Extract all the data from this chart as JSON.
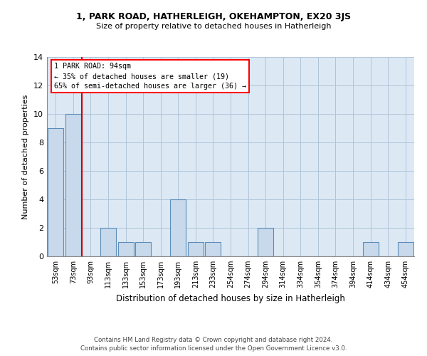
{
  "title": "1, PARK ROAD, HATHERLEIGH, OKEHAMPTON, EX20 3JS",
  "subtitle": "Size of property relative to detached houses in Hatherleigh",
  "xlabel": "Distribution of detached houses by size in Hatherleigh",
  "ylabel": "Number of detached properties",
  "bar_color": "#c9d9ec",
  "bar_edge_color": "#5b8db8",
  "background_color": "#dce9f5",
  "categories": [
    "53sqm",
    "73sqm",
    "93sqm",
    "113sqm",
    "133sqm",
    "153sqm",
    "173sqm",
    "193sqm",
    "213sqm",
    "233sqm",
    "254sqm",
    "274sqm",
    "294sqm",
    "314sqm",
    "334sqm",
    "354sqm",
    "374sqm",
    "394sqm",
    "414sqm",
    "434sqm",
    "454sqm"
  ],
  "values": [
    9,
    10,
    0,
    2,
    1,
    1,
    0,
    4,
    1,
    1,
    0,
    0,
    2,
    0,
    0,
    0,
    0,
    0,
    1,
    0,
    1
  ],
  "property_line_index": 2,
  "annotation_text": "1 PARK ROAD: 94sqm\n← 35% of detached houses are smaller (19)\n65% of semi-detached houses are larger (36) →",
  "annotation_box_color": "white",
  "annotation_box_edge_color": "red",
  "ylim": [
    0,
    14
  ],
  "yticks": [
    0,
    2,
    4,
    6,
    8,
    10,
    12,
    14
  ],
  "footer_line1": "Contains HM Land Registry data © Crown copyright and database right 2024.",
  "footer_line2": "Contains public sector information licensed under the Open Government Licence v3.0.",
  "red_line_color": "#cc0000",
  "grid_color": "#b0c4d8",
  "fig_width": 6.0,
  "fig_height": 5.0,
  "fig_dpi": 100
}
